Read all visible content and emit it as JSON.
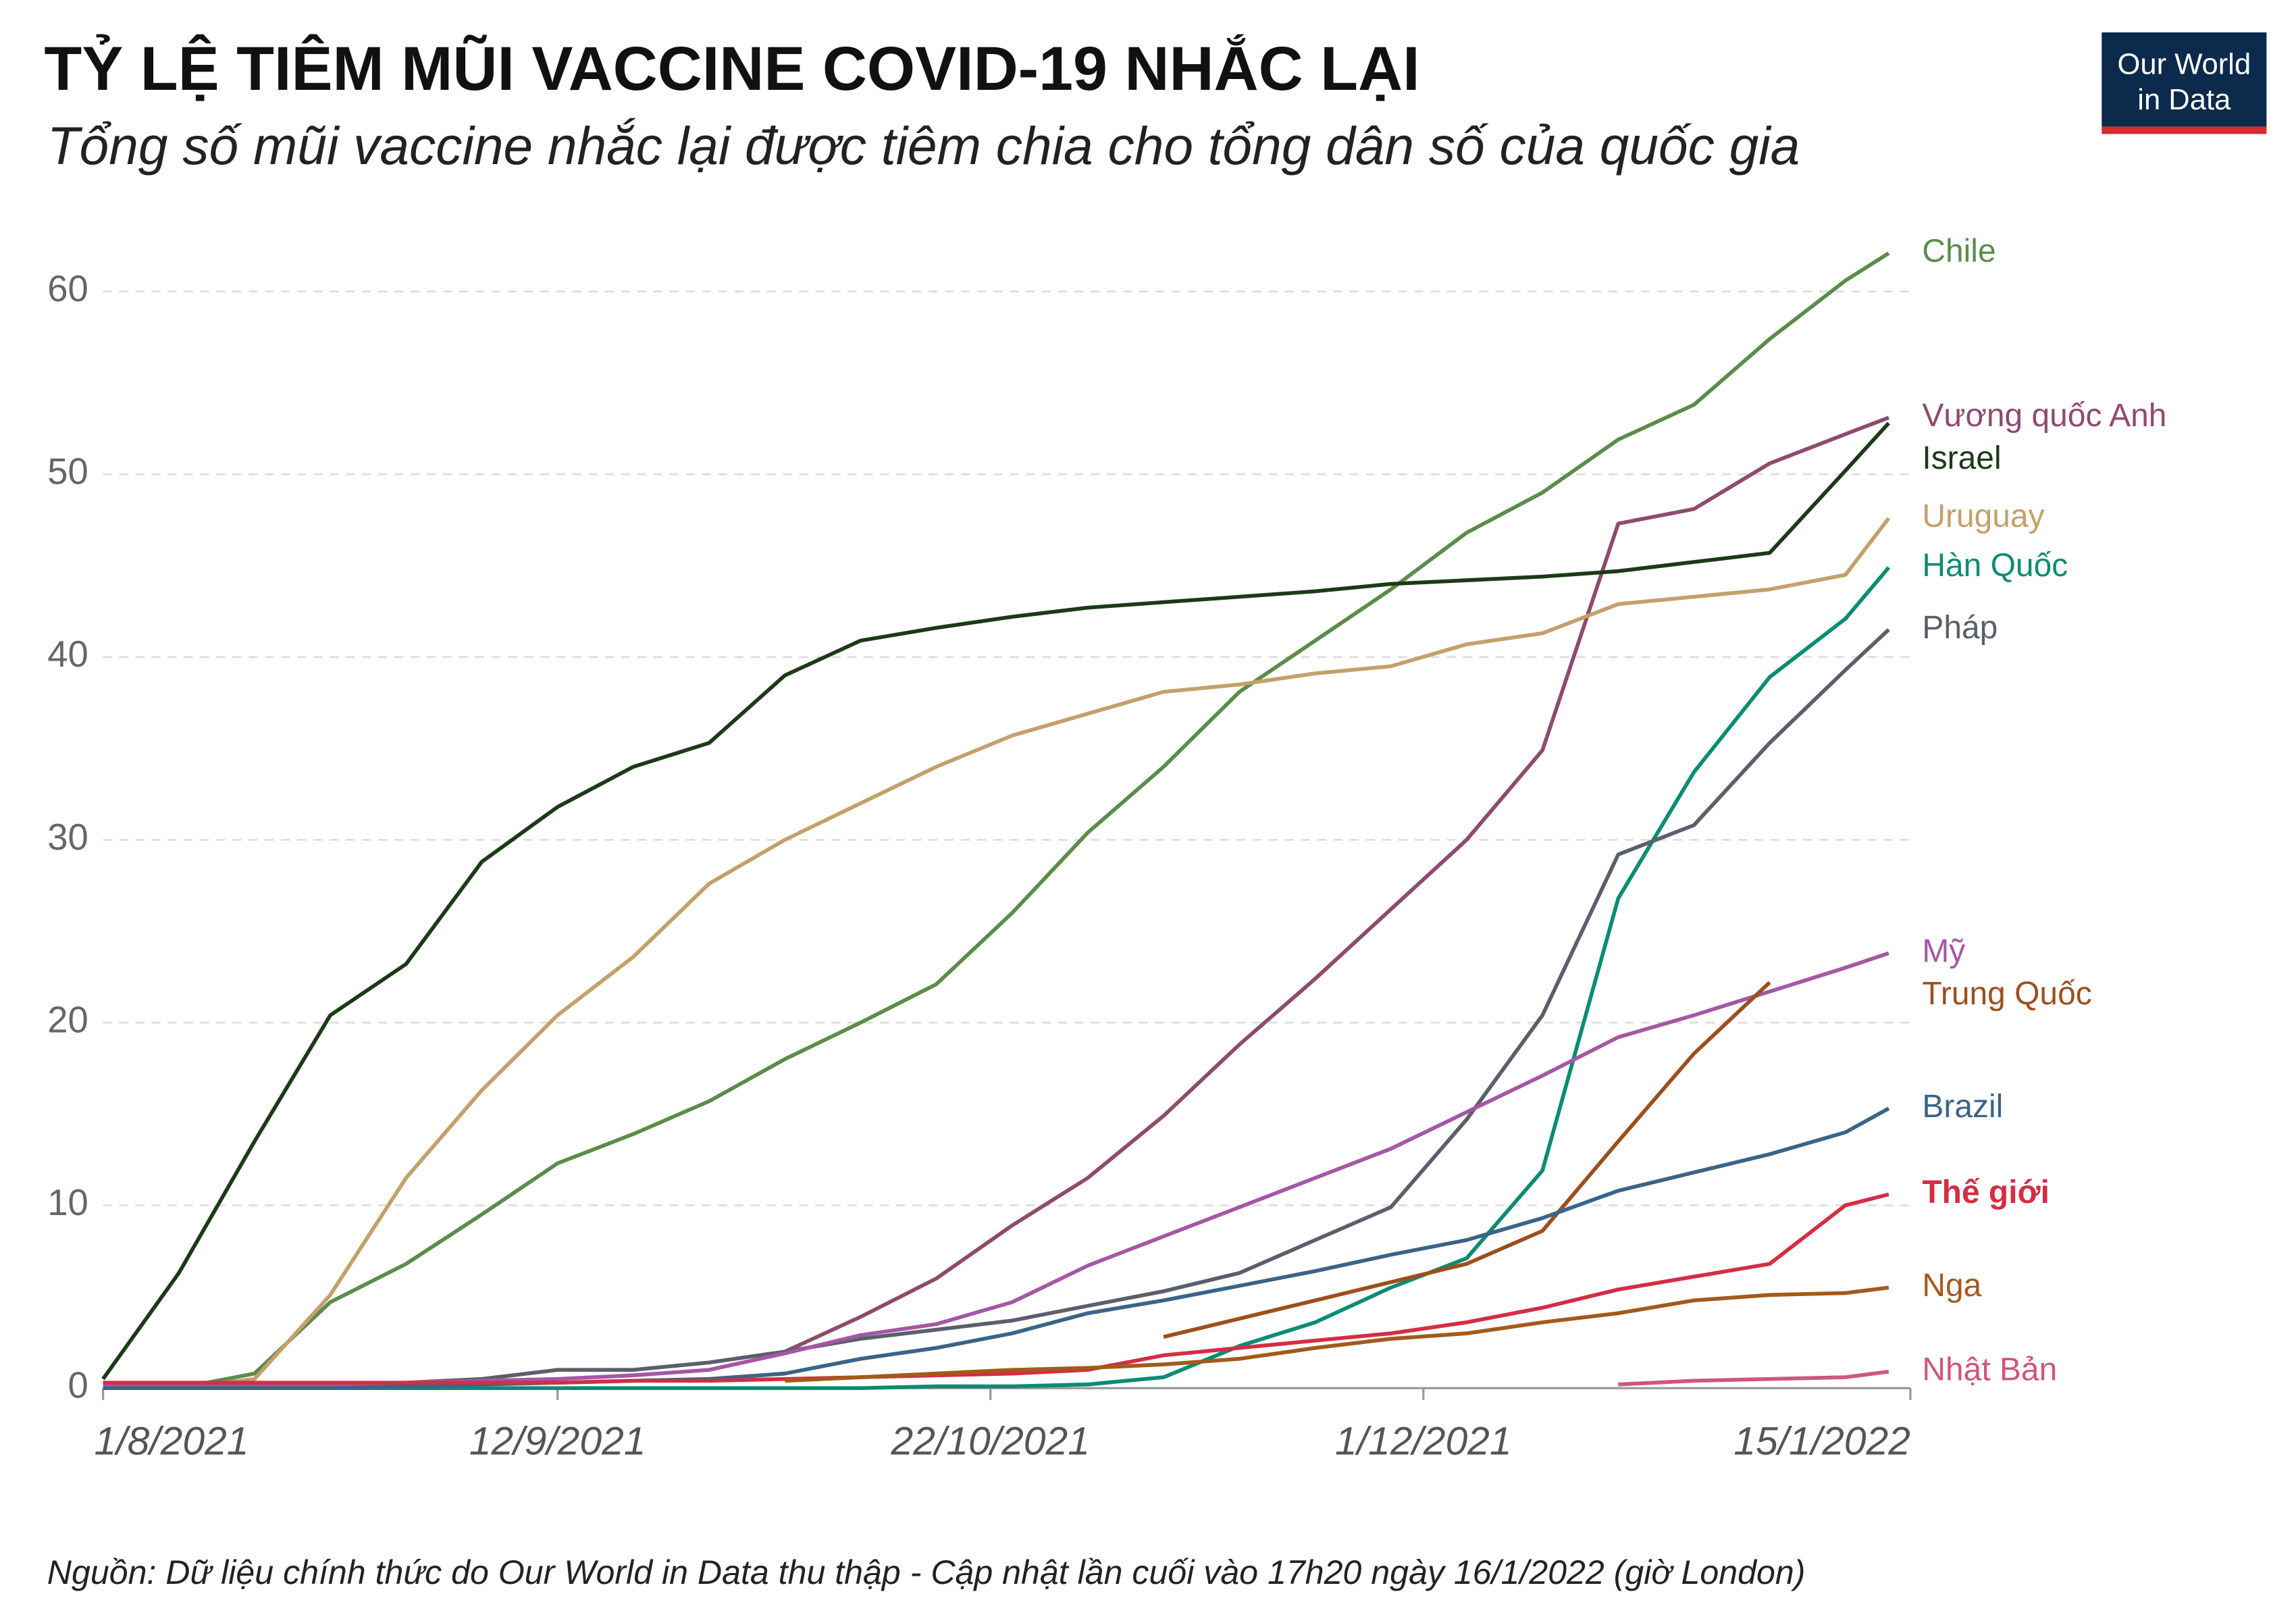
{
  "chart_data": {
    "type": "line",
    "title": "TỶ LỆ TIÊM MŨI VACCINE COVID-19 NHẮC LẠI",
    "subtitle": "Tổng số mũi vaccine nhắc lại được tiêm chia cho tổng dân số của quốc gia",
    "source": "Nguồn: Dữ liệu chính thức do Our World in Data thu thập - Cập nhật lần cuối vào 17h20 ngày 16/1/2022 (giờ London)",
    "logo": [
      "Our World",
      "in Data"
    ],
    "x": [
      "2021-08-01",
      "2021-08-08",
      "2021-08-15",
      "2021-08-22",
      "2021-08-29",
      "2021-09-05",
      "2021-09-12",
      "2021-09-19",
      "2021-09-26",
      "2021-10-03",
      "2021-10-10",
      "2021-10-17",
      "2021-10-24",
      "2021-10-31",
      "2021-11-07",
      "2021-11-14",
      "2021-11-21",
      "2021-11-28",
      "2021-12-05",
      "2021-12-12",
      "2021-12-19",
      "2021-12-26",
      "2022-01-02",
      "2022-01-09",
      "2022-01-13"
    ],
    "xlim": [
      "2021-08-01",
      "2022-01-15"
    ],
    "xticks": [
      {
        "value": "2021-08-01",
        "label": "1/8/2021"
      },
      {
        "value": "2021-09-12",
        "label": "12/9/2021"
      },
      {
        "value": "2021-10-22",
        "label": "22/10/2021"
      },
      {
        "value": "2021-12-01",
        "label": "1/12/2021"
      },
      {
        "value": "2022-01-15",
        "label": "15/1/2022"
      }
    ],
    "ylim": [
      0,
      62.5
    ],
    "yticks": [
      0,
      10,
      20,
      30,
      40,
      50,
      60
    ],
    "grid": true,
    "series": [
      {
        "name": "Chile",
        "color": "#5b8c4a",
        "values": [
          0,
          0,
          0.8,
          4.7,
          6.8,
          9.5,
          12.3,
          13.9,
          15.7,
          18,
          20,
          22.1,
          26,
          30.4,
          34,
          38.1,
          40.9,
          43.7,
          46.8,
          49,
          51.9,
          53.8,
          57.4,
          60.6,
          62.1
        ]
      },
      {
        "name": "Vương quốc Anh",
        "color": "#8f4a6e",
        "values": [
          null,
          null,
          null,
          null,
          null,
          null,
          null,
          null,
          null,
          2,
          3.9,
          6,
          8.9,
          11.5,
          14.9,
          18.8,
          22.4,
          26.2,
          30,
          34.9,
          47.3,
          48.1,
          50.6,
          52.2,
          53.1
        ]
      },
      {
        "name": "Israel",
        "color": "#1c3a17",
        "values": [
          0.5,
          6.3,
          13.5,
          20.4,
          23.2,
          28.8,
          31.8,
          34,
          35.3,
          39,
          40.9,
          41.6,
          42.2,
          42.7,
          43,
          43.3,
          43.6,
          44,
          44.2,
          44.4,
          44.7,
          45.2,
          45.7,
          50.2,
          52.8
        ]
      },
      {
        "name": "Uruguay",
        "color": "#c4a06a",
        "values": [
          0,
          0,
          0.5,
          5.1,
          11.5,
          16.3,
          20.4,
          23.6,
          27.6,
          30,
          32,
          34,
          35.7,
          36.9,
          38.1,
          38.5,
          39.1,
          39.5,
          40.7,
          41.3,
          42.9,
          43.3,
          43.7,
          44.5,
          47.6
        ]
      },
      {
        "name": "Hàn Quốc",
        "color": "#0a8c73",
        "values": [
          null,
          null,
          0,
          0,
          0,
          0,
          0,
          0,
          0,
          0,
          0,
          0.1,
          0.1,
          0.2,
          0.6,
          2.3,
          3.6,
          5.5,
          7.1,
          11.9,
          26.8,
          33.7,
          38.9,
          42.1,
          44.9
        ]
      },
      {
        "name": "Pháp",
        "color": "#5a5f6b",
        "values": [
          0.2,
          0.2,
          0.2,
          0.2,
          0.3,
          0.5,
          1,
          1,
          1.4,
          2,
          2.7,
          3.2,
          3.7,
          4.5,
          5.3,
          6.3,
          8.1,
          9.9,
          14.7,
          20.4,
          29.2,
          30.8,
          35.3,
          39.3,
          41.5
        ]
      },
      {
        "name": "Mỹ",
        "color": "#a557a5",
        "values": [
          0.1,
          0.1,
          0.2,
          0.2,
          0.3,
          0.4,
          0.5,
          0.7,
          1,
          1.9,
          2.9,
          3.5,
          4.7,
          6.7,
          8.3,
          9.9,
          11.5,
          13.1,
          15.1,
          17.1,
          19.2,
          20.4,
          21.7,
          23,
          23.8
        ]
      },
      {
        "name": "Trung Quốc",
        "color": "#9c4f1e",
        "values": [
          null,
          null,
          null,
          null,
          null,
          null,
          null,
          null,
          null,
          null,
          null,
          null,
          null,
          null,
          2.8,
          3.8,
          4.8,
          5.8,
          6.8,
          8.6,
          13.5,
          18.3,
          22.2,
          null,
          null
        ]
      },
      {
        "name": "Brazil",
        "color": "#3a6488",
        "values": [
          0,
          0,
          0,
          0,
          0.1,
          0.2,
          0.3,
          0.4,
          0.5,
          0.8,
          1.6,
          2.2,
          3,
          4.1,
          4.8,
          5.6,
          6.4,
          7.3,
          8.1,
          9.3,
          10.8,
          11.8,
          12.8,
          14,
          15.3
        ]
      },
      {
        "name": "Thế giới",
        "color": "#d42d44",
        "values": [
          0.3,
          0.3,
          0.3,
          0.3,
          0.3,
          0.3,
          0.3,
          0.4,
          0.4,
          0.5,
          0.6,
          0.7,
          0.8,
          1,
          1.8,
          2.2,
          2.6,
          3,
          3.6,
          4.4,
          5.4,
          6.1,
          6.8,
          10,
          10.6
        ]
      },
      {
        "name": "Nga",
        "color": "#a35a1a",
        "values": [
          null,
          null,
          null,
          null,
          null,
          null,
          null,
          null,
          null,
          0.4,
          0.6,
          0.8,
          1,
          1.1,
          1.3,
          1.6,
          2.2,
          2.7,
          3,
          3.6,
          4.1,
          4.8,
          5.1,
          5.2,
          5.5
        ]
      },
      {
        "name": "Nhật Bản",
        "color": "#d0567a",
        "values": [
          null,
          null,
          null,
          null,
          null,
          null,
          null,
          null,
          null,
          null,
          null,
          null,
          null,
          null,
          null,
          null,
          null,
          null,
          null,
          null,
          0.2,
          0.4,
          0.5,
          0.6,
          0.9
        ]
      }
    ]
  }
}
